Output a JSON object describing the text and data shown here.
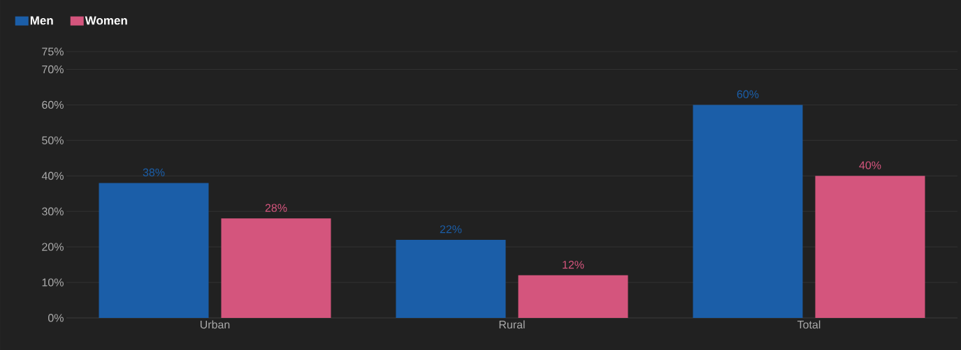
{
  "chart_data": {
    "type": "bar",
    "categories": [
      "Urban",
      "Rural",
      "Total"
    ],
    "series": [
      {
        "name": "Men",
        "color": "#1b5ea8",
        "values": [
          38,
          22,
          60
        ],
        "value_labels": [
          "38%",
          "22%",
          "60%"
        ]
      },
      {
        "name": "Women",
        "color": "#d4557d",
        "values": [
          28,
          12,
          40
        ],
        "value_labels": [
          "28%",
          "12%",
          "40%"
        ]
      }
    ],
    "ylim": [
      0,
      75
    ],
    "yticks": [
      {
        "value": 0,
        "label": "0%"
      },
      {
        "value": 10,
        "label": "10%"
      },
      {
        "value": 20,
        "label": "20%"
      },
      {
        "value": 30,
        "label": "30%"
      },
      {
        "value": 40,
        "label": "40%"
      },
      {
        "value": 50,
        "label": "50%"
      },
      {
        "value": 60,
        "label": "60%"
      },
      {
        "value": 70,
        "label": "70%"
      },
      {
        "value": 75,
        "label": "75%"
      }
    ],
    "grid": "y",
    "legend": "top left"
  }
}
